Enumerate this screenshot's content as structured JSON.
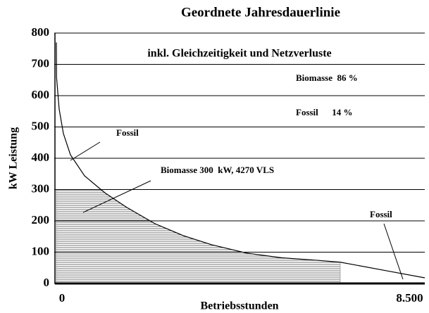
{
  "chart_data": {
    "type": "area",
    "title": "Geordnete Jahresdauerlinie",
    "subtitle": "inkl. Gleichzeitigkeit und Netzverluste",
    "y_label": "kW Leistung",
    "x_label": "Betriebsstunden",
    "annotations": [
      "Biomasse  86 %",
      "Fossil      14 %",
      "Fossil",
      "Biomasse 300  kW, 4270 VLS",
      "Fossil"
    ],
    "x": [
      0,
      5,
      67,
      167,
      335,
      670,
      1060,
      1172,
      1675,
      2345,
      3015,
      3685,
      4522,
      5360,
      6197,
      6750,
      7872,
      8760
    ],
    "series": [
      {
        "color": "#000000",
        "values": [
          770,
          658,
          557,
          479,
          411,
          344,
          300,
          288,
          243,
          191,
          153,
          124,
          97,
          82,
          74,
          68,
          40,
          18
        ]
      },
      {
        "color": "#808080",
        "hatch": true,
        "values": [
          300,
          300,
          300,
          300,
          300,
          300,
          300,
          288,
          243,
          191,
          153,
          124,
          97,
          82,
          74,
          68,
          null,
          null
        ]
      }
    ],
    "xlim": [
      0,
      8760
    ],
    "xticks": [
      0,
      {
        "value": 8500,
        "label": "8.500"
      }
    ],
    "ylim": [
      0,
      800
    ],
    "yticks": [
      0,
      100,
      200,
      300,
      400,
      500,
      600,
      700,
      800
    ],
    "grid": true
  }
}
